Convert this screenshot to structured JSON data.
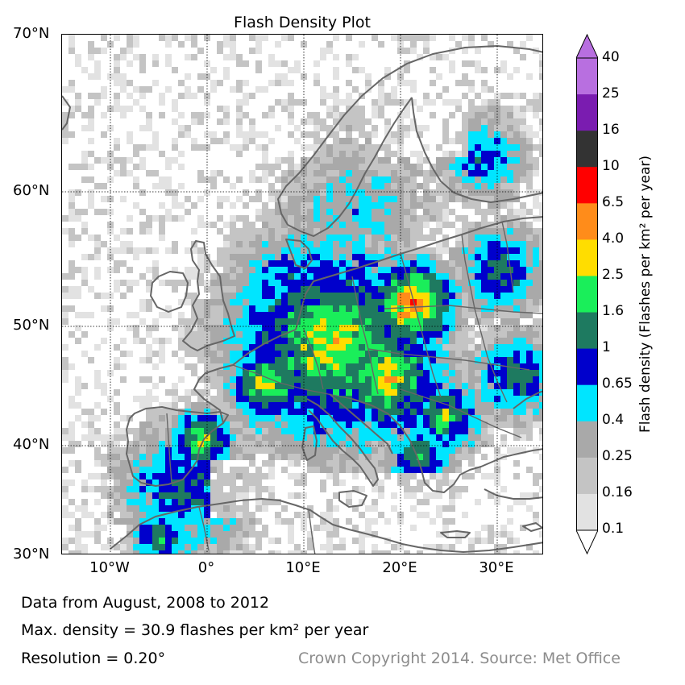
{
  "title": "Flash Density Plot",
  "lat_labels": [
    "70°N",
    "60°N",
    "50°N",
    "40°N",
    "30°N"
  ],
  "lon_labels": [
    "10°W",
    "0°",
    "10°E",
    "20°E",
    "30°E"
  ],
  "colorbar": {
    "title": "Flash density (Flashes per km² per year)",
    "levels": [
      "40",
      "25",
      "16",
      "10",
      "6.5",
      "4.0",
      "2.5",
      "1.6",
      "1",
      "0.65",
      "0.4",
      "0.25",
      "0.16",
      "0.1"
    ],
    "colors": [
      "#b86fe0",
      "#7a1cb0",
      "#333333",
      "#ff0000",
      "#ff8c1a",
      "#ffdd00",
      "#1aee5a",
      "#1e7a60",
      "#0000cc",
      "#00e5ff",
      "#a9a9a9",
      "#c4c4c4",
      "#e2e2e2"
    ]
  },
  "map": {
    "extent": {
      "lon": [
        -15,
        35
      ],
      "lat": [
        30,
        70
      ]
    },
    "land_color": "#666666"
  },
  "info": {
    "line1": "Data from August, 2008 to 2012",
    "line2": "Max. density = 30.9 flashes per km² per year",
    "line3": "Resolution = 0.20°"
  },
  "credit": "Crown Copyright 2014. Source: Met Office"
}
